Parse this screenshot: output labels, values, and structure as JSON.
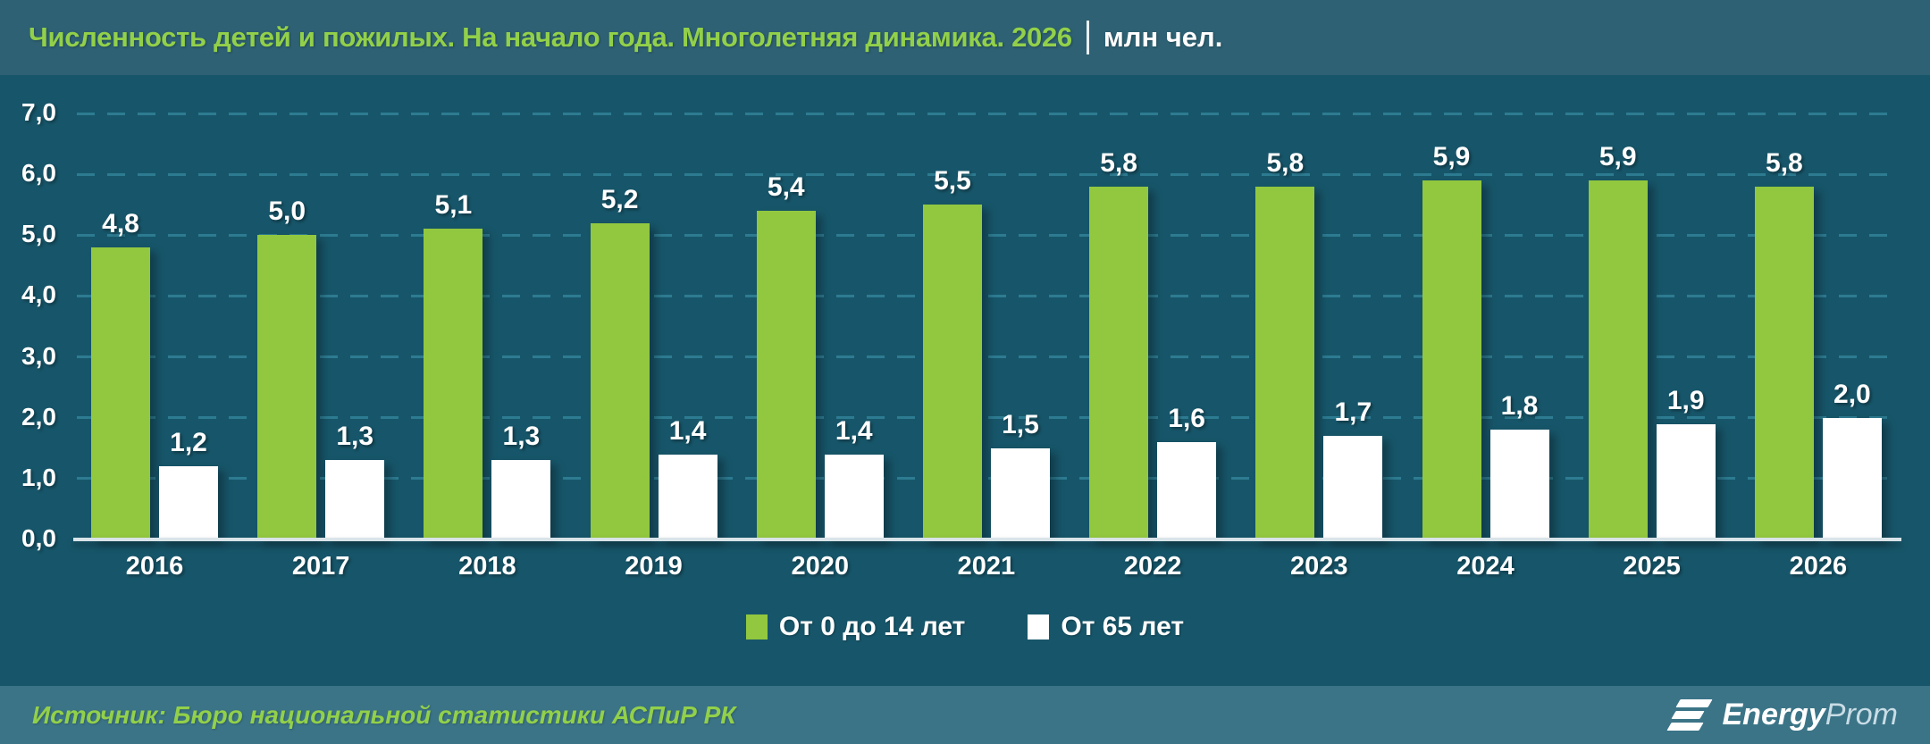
{
  "title": {
    "main": "Численность детей и пожилых. На начало года. Многолетняя динамика. 2026",
    "unit": "млн чел."
  },
  "chart_data": {
    "type": "bar",
    "title": "Численность детей и пожилых. На начало года. Многолетняя динамика. 2026",
    "unit_label": "млн чел.",
    "categories": [
      "2016",
      "2017",
      "2018",
      "2019",
      "2020",
      "2021",
      "2022",
      "2023",
      "2024",
      "2025",
      "2026"
    ],
    "series": [
      {
        "name": "От 0 до 14 лет",
        "color": "#92c83f",
        "values": [
          4.8,
          5.0,
          5.1,
          5.2,
          5.4,
          5.5,
          5.8,
          5.8,
          5.9,
          5.9,
          5.8
        ],
        "labels": [
          "4,8",
          "5,0",
          "5,1",
          "5,2",
          "5,4",
          "5,5",
          "5,8",
          "5,8",
          "5,9",
          "5,9",
          "5,8"
        ]
      },
      {
        "name": "От 65 лет",
        "color": "#ffffff",
        "values": [
          1.2,
          1.3,
          1.3,
          1.4,
          1.4,
          1.5,
          1.6,
          1.7,
          1.8,
          1.9,
          2.0
        ],
        "labels": [
          "1,2",
          "1,3",
          "1,3",
          "1,4",
          "1,4",
          "1,5",
          "1,6",
          "1,7",
          "1,8",
          "1,9",
          "2,0"
        ]
      }
    ],
    "y_ticks": [
      "7,0",
      "6,0",
      "5,0",
      "4,0",
      "3,0",
      "2,0",
      "1,0",
      "0,0"
    ],
    "ylim": [
      0,
      7
    ],
    "grid": "horizontal-dashed",
    "legend_position": "bottom-center"
  },
  "footer": {
    "source": "Источник: Бюро национальной статистики АСПиР РК",
    "logo_bold": "Energy",
    "logo_light": "Prom"
  },
  "colors": {
    "title_band": "#2d6173",
    "chart_background": "#17566a",
    "footer_band": "#3b7487",
    "title_green": "#92d04a",
    "bar_green": "#92c83f",
    "bar_white": "#ffffff",
    "gridline": "#2d7b91",
    "axis_line": "#d9e4e9",
    "text_white": "#ffffff"
  }
}
